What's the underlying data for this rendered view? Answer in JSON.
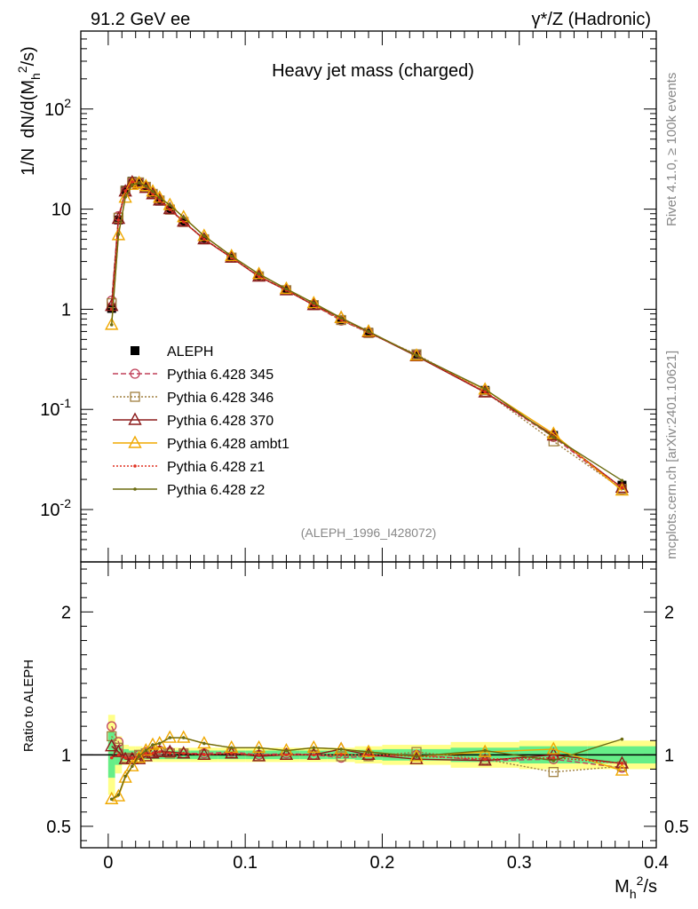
{
  "header": {
    "left_label": "91.2 GeV ee",
    "right_label": "γ*/Z (Hadronic)"
  },
  "side": {
    "rivet_label": "Rivet 4.1.0, ≥ 100k events",
    "mcplots_label": "mcplots.cern.ch [arXiv:2401.10621]"
  },
  "chart_data": [
    {
      "type": "line",
      "title": "Heavy jet mass (charged)",
      "ylabel": "1/N  dN/d(M_h^2/s)",
      "xlabel": "M_h^2/s",
      "yscale": "log",
      "ylim": [
        0.003,
        600
      ],
      "xlim": [
        -0.02,
        0.4
      ],
      "watermark": "(ALEPH_1996_I428072)",
      "y_ticks": [
        "10^-2",
        "10^-1",
        "1",
        "10",
        "10^2"
      ],
      "legend_position": "left-middle",
      "x": [
        0.0025,
        0.0075,
        0.0125,
        0.0175,
        0.0225,
        0.0275,
        0.0325,
        0.0375,
        0.045,
        0.055,
        0.07,
        0.09,
        0.11,
        0.13,
        0.15,
        0.17,
        0.19,
        0.225,
        0.275,
        0.325,
        0.375
      ],
      "series": [
        {
          "name": "ALEPH",
          "color": "#000000",
          "marker": "filled-square",
          "values": [
            1.02,
            7.8,
            15.5,
            19.0,
            18.5,
            16.5,
            14.0,
            12.0,
            9.8,
            7.4,
            5.0,
            3.25,
            2.15,
            1.55,
            1.1,
            0.79,
            0.59,
            0.35,
            0.155,
            0.055,
            0.0175
          ]
        },
        {
          "name": "Pythia 6.428 345",
          "color": "#c0405a",
          "marker": "open-circle",
          "values": [
            1.22,
            8.5,
            15.0,
            18.7,
            18.6,
            16.8,
            14.3,
            12.3,
            10.0,
            7.5,
            5.05,
            3.3,
            2.14,
            1.56,
            1.1,
            0.77,
            0.59,
            0.35,
            0.148,
            0.053,
            0.0158
          ]
        },
        {
          "name": "Pythia 6.428 346",
          "color": "#a08040",
          "marker": "open-square",
          "values": [
            1.15,
            8.2,
            15.2,
            18.6,
            18.5,
            16.7,
            14.2,
            12.2,
            9.9,
            7.45,
            5.0,
            3.28,
            2.13,
            1.55,
            1.1,
            0.78,
            0.58,
            0.355,
            0.15,
            0.048,
            0.016
          ]
        },
        {
          "name": "Pythia 6.428 370",
          "color": "#8b1a1a",
          "marker": "open-triangle",
          "values": [
            1.08,
            8.0,
            15.0,
            18.5,
            18.0,
            16.3,
            14.1,
            12.2,
            10.0,
            7.5,
            5.0,
            3.28,
            2.12,
            1.55,
            1.1,
            0.82,
            0.59,
            0.34,
            0.148,
            0.055,
            0.0165
          ]
        },
        {
          "name": "Pythia 6.428 ambt1",
          "color": "#f0a800",
          "marker": "open-triangle",
          "values": [
            0.7,
            5.5,
            13.0,
            17.5,
            18.2,
            17.0,
            15.0,
            13.0,
            11.0,
            8.3,
            5.4,
            3.4,
            2.25,
            1.6,
            1.15,
            0.82,
            0.6,
            0.345,
            0.158,
            0.057,
            0.0155
          ]
        },
        {
          "name": "Pythia 6.428 z1",
          "color": "#e03020",
          "marker": "dot",
          "values": [
            1.0,
            7.8,
            15.2,
            18.7,
            18.4,
            16.7,
            14.2,
            12.2,
            9.9,
            7.45,
            5.0,
            3.27,
            2.13,
            1.55,
            1.1,
            0.79,
            0.59,
            0.345,
            0.15,
            0.054,
            0.0165
          ]
        },
        {
          "name": "Pythia 6.428 z2",
          "color": "#6b6b10",
          "marker": "dot",
          "values": [
            0.7,
            5.6,
            13.2,
            17.5,
            18.3,
            17.0,
            15.0,
            13.0,
            11.0,
            8.3,
            5.4,
            3.4,
            2.25,
            1.6,
            1.15,
            0.82,
            0.6,
            0.345,
            0.16,
            0.053,
            0.0195
          ]
        }
      ]
    },
    {
      "type": "line",
      "title": "",
      "ylabel": "Ratio to ALEPH",
      "xlabel": "M_h^2/s",
      "ylim": [
        0.35,
        2.35
      ],
      "xlim": [
        -0.02,
        0.4
      ],
      "y_ticks": [
        "0.5",
        "1",
        "2"
      ],
      "x_ticks": [
        "0",
        "0.1",
        "0.2",
        "0.3",
        "0.4"
      ],
      "band_edges": [
        0,
        0.005,
        0.01,
        0.015,
        0.02,
        0.025,
        0.03,
        0.035,
        0.04,
        0.05,
        0.06,
        0.08,
        0.1,
        0.12,
        0.14,
        0.16,
        0.18,
        0.2,
        0.25,
        0.3,
        0.35,
        0.4
      ],
      "band_inner": [
        0.16,
        0.07,
        0.04,
        0.03,
        0.03,
        0.03,
        0.03,
        0.03,
        0.03,
        0.03,
        0.03,
        0.03,
        0.03,
        0.03,
        0.03,
        0.03,
        0.035,
        0.04,
        0.05,
        0.06,
        0.06
      ],
      "band_outer": [
        0.28,
        0.13,
        0.07,
        0.06,
        0.06,
        0.05,
        0.05,
        0.05,
        0.05,
        0.05,
        0.05,
        0.05,
        0.05,
        0.05,
        0.05,
        0.05,
        0.06,
        0.07,
        0.09,
        0.1,
        0.1
      ],
      "x": [
        0.0025,
        0.0075,
        0.0125,
        0.0175,
        0.0225,
        0.0275,
        0.0325,
        0.0375,
        0.045,
        0.055,
        0.07,
        0.09,
        0.11,
        0.13,
        0.15,
        0.17,
        0.19,
        0.225,
        0.275,
        0.325,
        0.375
      ],
      "series": [
        {
          "name": "Pythia 6.428 345",
          "color": "#c0405a",
          "marker": "open-circle",
          "values": [
            1.2,
            1.09,
            0.97,
            0.98,
            1.0,
            1.02,
            1.02,
            1.03,
            1.02,
            1.01,
            1.01,
            1.02,
            1.0,
            1.01,
            1.0,
            0.98,
            0.99,
            1.0,
            0.96,
            0.97,
            0.91
          ]
        },
        {
          "name": "Pythia 6.428 346",
          "color": "#a08040",
          "marker": "open-square",
          "values": [
            1.13,
            1.05,
            0.98,
            0.98,
            1.0,
            1.01,
            1.01,
            1.02,
            1.01,
            1.01,
            1.0,
            1.01,
            0.99,
            1.0,
            1.0,
            0.99,
            0.99,
            1.02,
            0.97,
            0.88,
            0.92
          ]
        },
        {
          "name": "Pythia 6.428 370",
          "color": "#8b1a1a",
          "marker": "open-triangle",
          "values": [
            1.06,
            1.02,
            0.97,
            0.97,
            0.97,
            0.99,
            1.01,
            1.02,
            1.02,
            1.01,
            1.0,
            1.01,
            0.99,
            1.0,
            1.0,
            1.04,
            1.0,
            0.97,
            0.96,
            1.0,
            0.94
          ]
        },
        {
          "name": "Pythia 6.428 ambt1",
          "color": "#f0a800",
          "marker": "open-triangle",
          "values": [
            0.69,
            0.71,
            0.84,
            0.92,
            0.98,
            1.03,
            1.07,
            1.08,
            1.12,
            1.12,
            1.08,
            1.05,
            1.05,
            1.03,
            1.05,
            1.04,
            1.02,
            0.99,
            1.02,
            1.04,
            0.89
          ]
        },
        {
          "name": "Pythia 6.428 z1",
          "color": "#e03020",
          "marker": "dot",
          "values": [
            0.98,
            1.0,
            0.98,
            0.98,
            0.99,
            1.01,
            1.01,
            1.02,
            1.01,
            1.01,
            1.0,
            1.01,
            1.0,
            1.0,
            1.0,
            1.0,
            1.0,
            0.99,
            0.97,
            0.98,
            0.94
          ]
        },
        {
          "name": "Pythia 6.428 z2",
          "color": "#6b6b10",
          "marker": "dot",
          "values": [
            0.69,
            0.72,
            0.85,
            0.92,
            0.99,
            1.03,
            1.07,
            1.08,
            1.12,
            1.12,
            1.08,
            1.05,
            1.05,
            1.03,
            1.05,
            1.04,
            1.02,
            0.99,
            1.03,
            0.96,
            1.11
          ]
        }
      ]
    }
  ]
}
